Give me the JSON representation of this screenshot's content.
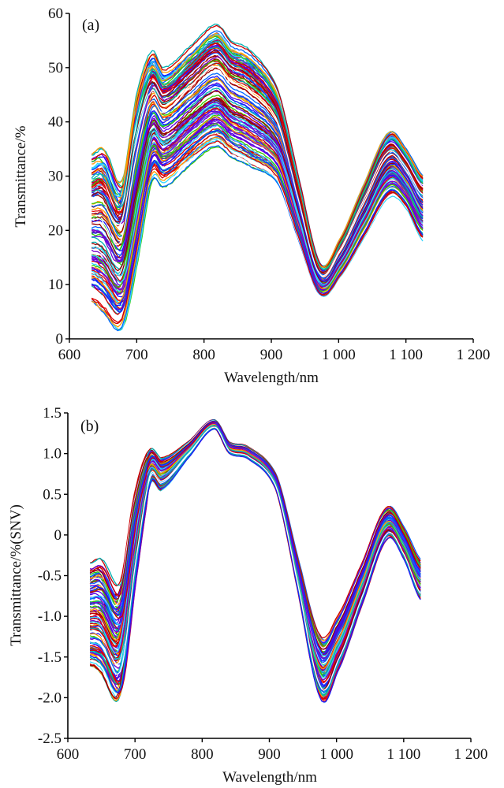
{
  "chart_data": [
    {
      "panel": "(a)",
      "type": "line",
      "title": "",
      "xlabel": "Wavelength/nm",
      "ylabel": "Transmittance/%",
      "xlim": [
        600,
        1200
      ],
      "ylim": [
        0,
        60
      ],
      "x_ticks": [
        600,
        700,
        800,
        900,
        1000,
        1100,
        1200
      ],
      "x_tick_labels": [
        "600",
        "700",
        "800",
        "900",
        "1 000",
        "1 100",
        "1 200"
      ],
      "y_ticks": [
        0,
        10,
        20,
        30,
        40,
        50,
        60
      ],
      "y_tick_labels": [
        "0",
        "10",
        "20",
        "30",
        "40",
        "50",
        "60"
      ],
      "grid": false,
      "legend": "none",
      "wavelength_range_nm": [
        633,
        1125
      ],
      "series_count": 120,
      "feature_points": {
        "x": [
          633,
          650,
          678,
          700,
          722,
          740,
          780,
          818,
          840,
          870,
          910,
          940,
          972,
          1000,
          1040,
          1075,
          1100,
          1125
        ],
        "lower_envelope": [
          7,
          5,
          2,
          14,
          29,
          28,
          32,
          35,
          33,
          31,
          28,
          18,
          8,
          11,
          19,
          26,
          24,
          18
        ],
        "upper_envelope": [
          34,
          35,
          29,
          45,
          53,
          50,
          54,
          58,
          55,
          53,
          46,
          30,
          14,
          18,
          29,
          38,
          35,
          30
        ]
      },
      "series_colors": [
        "#5b00e6",
        "#e00000",
        "#33cc00",
        "#33d6ff",
        "#ff9900",
        "#990000",
        "#0066ff",
        "#7a00cc",
        "#00b3b3",
        "#ffffff",
        "#cc0000",
        "#1a1aff"
      ]
    },
    {
      "panel": "(b)",
      "type": "line",
      "title": "",
      "xlabel": "Wavelength/nm",
      "ylabel": "Transmittance/%(SNV)",
      "xlim": [
        600,
        1200
      ],
      "ylim": [
        -2.5,
        1.5
      ],
      "x_ticks": [
        600,
        700,
        800,
        900,
        1000,
        1100,
        1200
      ],
      "x_tick_labels": [
        "600",
        "700",
        "800",
        "900",
        "1 000",
        "1 100",
        "1 200"
      ],
      "y_ticks": [
        -2.5,
        -2.0,
        -1.5,
        -1.0,
        -0.5,
        0,
        0.5,
        1.0,
        1.5
      ],
      "y_tick_labels": [
        "-2.5",
        "-2.0",
        "-1.5",
        "-1.0",
        "-0.5",
        "0",
        "0.5",
        "1.0",
        "1.5"
      ],
      "grid": false,
      "legend": "none",
      "wavelength_range_nm": [
        633,
        1125
      ],
      "series_count": 120,
      "feature_points": {
        "x": [
          633,
          650,
          678,
          700,
          722,
          740,
          780,
          818,
          840,
          870,
          910,
          940,
          975,
          1000,
          1040,
          1075,
          1100,
          1125
        ],
        "lower_envelope": [
          -1.6,
          -1.7,
          -2.0,
          -0.6,
          0.6,
          0.55,
          0.95,
          1.3,
          1.0,
          0.92,
          0.55,
          -0.6,
          -2.0,
          -1.7,
          -0.8,
          -0.05,
          -0.3,
          -0.8
        ],
        "upper_envelope": [
          -0.35,
          -0.3,
          -0.6,
          0.5,
          1.05,
          0.95,
          1.15,
          1.42,
          1.15,
          1.08,
          0.75,
          -0.2,
          -1.2,
          -1.0,
          -0.3,
          0.35,
          0.1,
          -0.3
        ]
      },
      "series_colors": [
        "#5b00e6",
        "#e00000",
        "#33cc00",
        "#33d6ff",
        "#ff9900",
        "#990000",
        "#0066ff",
        "#7a00cc",
        "#00b3b3",
        "#ffffff",
        "#cc0000",
        "#1a1aff"
      ]
    }
  ]
}
